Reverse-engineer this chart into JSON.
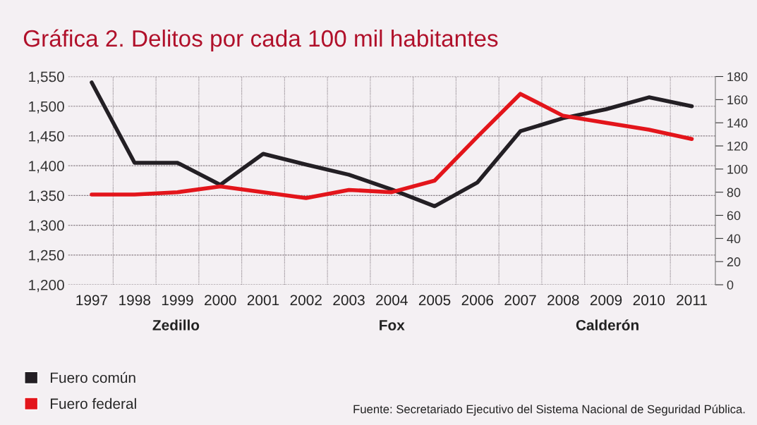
{
  "chart_data": {
    "type": "line",
    "title": "Gráfica 2. Delitos por cada 100 mil habitantes",
    "categories": [
      "1997",
      "1998",
      "1999",
      "2000",
      "2001",
      "2002",
      "2003",
      "2004",
      "2005",
      "2006",
      "2007",
      "2008",
      "2009",
      "2010",
      "2011"
    ],
    "series": [
      {
        "name": "Fuero común",
        "color": "#231f24",
        "values": [
          1540,
          1405,
          1405,
          1368,
          1420,
          1402,
          1385,
          1360,
          1332,
          1372,
          1458,
          1480,
          1495,
          1515,
          1500
        ]
      },
      {
        "name": "Fuero federal",
        "color": "#e3151b",
        "axis": "y2",
        "values": [
          78,
          78,
          80,
          85,
          80,
          75,
          82,
          80,
          90,
          128,
          165,
          146,
          140,
          134,
          126
        ]
      }
    ],
    "ylim": [
      1200,
      1550
    ],
    "yticks": [
      {
        "value": 1200,
        "label": "1,200"
      },
      {
        "value": 1250,
        "label": "1,250"
      },
      {
        "value": 1300,
        "label": "1,300"
      },
      {
        "value": 1350,
        "label": "1,350"
      },
      {
        "value": 1400,
        "label": "1,400"
      },
      {
        "value": 1450,
        "label": "1,450"
      },
      {
        "value": 1500,
        "label": "1,500"
      },
      {
        "value": 1550,
        "label": "1,550"
      }
    ],
    "y2lim": [
      0,
      180
    ],
    "y2ticks": [
      0,
      20,
      40,
      60,
      80,
      100,
      120,
      140,
      160,
      180
    ],
    "annotations": [
      "Zedillo",
      "Fox",
      "Calderón",
      "Fuente: Secretariado Ejecutivo del Sistema Nacional de Seguridad Pública."
    ],
    "grid": true,
    "legend": "bottom left",
    "marker": "none",
    "line_style": "solid"
  }
}
